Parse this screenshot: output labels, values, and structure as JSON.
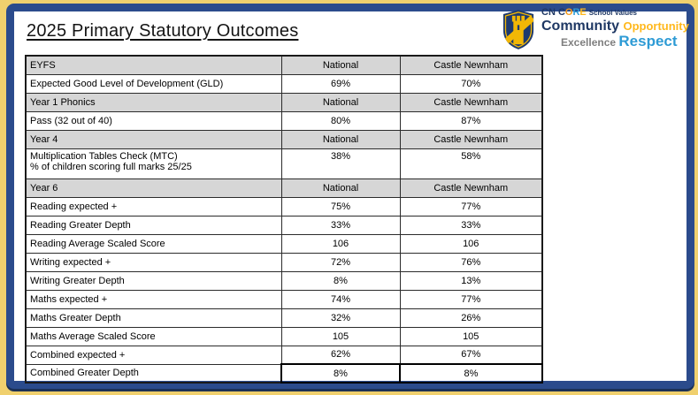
{
  "colors": {
    "frame_yellow": "#F0D06E",
    "frame_blue": "#2B4B8C",
    "frame_blue_dark": "#1C3156",
    "header_gray": "#D6D6D6",
    "navy": "#1F3864",
    "gold": "#FFB81C",
    "gold_o": "#F59A1B",
    "light_blue": "#2E9BD5",
    "gray": "#7F7F7F",
    "crest_gold": "#F2B705",
    "crest_navy": "#1E3A6E"
  },
  "title": "2025 Primary Statutory Outcomes",
  "logo": {
    "cn": "CN ",
    "core": {
      "c": "C",
      "o": "O",
      "r": "R",
      "e": "E"
    },
    "school_values": "School Values",
    "community": "Community ",
    "opportunity": "Opportunity",
    "excellence": "Excellence ",
    "respect": "Respect"
  },
  "table": {
    "columns": {
      "label_width": 289,
      "national_width": 134,
      "school_width": 161
    },
    "rows": [
      {
        "type": "header",
        "label": "EYFS",
        "national": "National",
        "school": "Castle Newnham"
      },
      {
        "type": "data",
        "label": "Expected Good Level of Development (GLD)",
        "national": "69%",
        "school": "70%"
      },
      {
        "type": "header",
        "label": "Year 1 Phonics",
        "national": "National",
        "school": "Castle Newnham"
      },
      {
        "type": "data",
        "label": "Pass (32 out of 40)",
        "national": "80%",
        "school": "87%"
      },
      {
        "type": "header",
        "label": "Year 4",
        "national": "National",
        "school": "Castle Newnham"
      },
      {
        "type": "data",
        "label": "Multiplication Tables Check (MTC)",
        "label2": "% of children scoring full marks 25/25",
        "national": "38%",
        "school": "58%",
        "top": true
      },
      {
        "type": "header",
        "label": "Year 6",
        "national": "National",
        "school": "Castle Newnham"
      },
      {
        "type": "data",
        "label": "Reading expected +",
        "national": "75%",
        "school": "77%"
      },
      {
        "type": "data",
        "label": "Reading Greater Depth",
        "national": "33%",
        "school": "33%"
      },
      {
        "type": "data",
        "label": "Reading Average Scaled Score",
        "national": "106",
        "school": "106"
      },
      {
        "type": "data",
        "label": "Writing expected +",
        "national": "72%",
        "school": "76%"
      },
      {
        "type": "data",
        "label": "Writing Greater Depth",
        "national": "8%",
        "school": "13%"
      },
      {
        "type": "data",
        "label": "Maths expected +",
        "national": "74%",
        "school": "77%"
      },
      {
        "type": "data",
        "label": "Maths Greater Depth",
        "national": "32%",
        "school": "26%"
      },
      {
        "type": "data",
        "label": "Maths Average Scaled Score",
        "national": "105",
        "school": "105"
      },
      {
        "type": "data",
        "label": "Combined expected +",
        "national": "62%",
        "school": "67%"
      },
      {
        "type": "data",
        "label": "Combined Greater Depth",
        "national": "8%",
        "school": "8%",
        "thick": true
      }
    ]
  }
}
